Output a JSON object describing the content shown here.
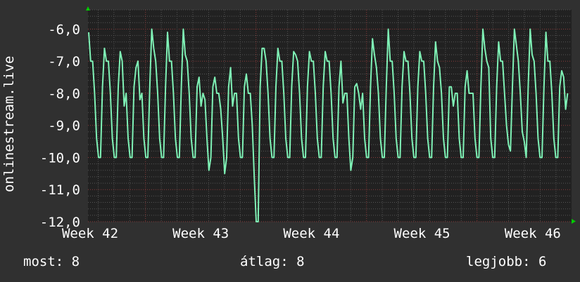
{
  "chart_data": {
    "type": "line",
    "ylabel": "onlinestream.live",
    "ylim": [
      -12,
      -5.4
    ],
    "yticks": [
      "-6,0",
      "-7,0",
      "-8,0",
      "-9,0",
      "-10,0",
      "-11,0",
      "-12,0"
    ],
    "ytick_values": [
      -6,
      -7,
      -8,
      -9,
      -10,
      -11,
      -12
    ],
    "xticks": [
      "Week 42",
      "Week 43",
      "Week 44",
      "Week 45",
      "Week 46"
    ],
    "grid": true,
    "colors": {
      "line": "#7ff2b6",
      "plot_bg": "#212121",
      "page_bg": "#303030",
      "major_grid": "#8a3a3a",
      "minor_grid": "#555555",
      "arrow": "#00cc00"
    },
    "series": [
      {
        "values": [
          -6.1,
          -7.0,
          -7.0,
          -8.0,
          -9.4,
          -10,
          -10,
          -7.8,
          -6.6,
          -7.0,
          -7.0,
          -8.0,
          -9.4,
          -10,
          -10,
          -7.8,
          -6.7,
          -7.0,
          -8.4,
          -8.0,
          -9.4,
          -10,
          -10,
          -7.8,
          -7.2,
          -7.0,
          -8.2,
          -8.0,
          -9.4,
          -10,
          -10,
          -7.8,
          -6.0,
          -6.6,
          -7.0,
          -8.0,
          -9.4,
          -10,
          -10,
          -7.8,
          -6.1,
          -7.0,
          -7.0,
          -8.0,
          -9.4,
          -10,
          -10,
          -7.8,
          -6.0,
          -6.8,
          -7.0,
          -8.0,
          -9.4,
          -10,
          -10,
          -7.8,
          -7.5,
          -8.4,
          -8.0,
          -8.2,
          -9.4,
          -10.4,
          -10,
          -7.8,
          -7.5,
          -8.0,
          -8.0,
          -8.5,
          -9.4,
          -10.5,
          -10,
          -7.8,
          -7.2,
          -8.4,
          -8.0,
          -8.0,
          -9.4,
          -10,
          -10,
          -7.8,
          -7.4,
          -8.0,
          -8.0,
          -9.0,
          -10.6,
          -12,
          -12,
          -7.8,
          -6.6,
          -6.6,
          -7.0,
          -8.0,
          -9.4,
          -10,
          -10,
          -7.8,
          -6.6,
          -7.0,
          -7.0,
          -8.0,
          -9.4,
          -10,
          -10,
          -7.8,
          -6.7,
          -6.8,
          -7.0,
          -8.0,
          -9.4,
          -10,
          -10,
          -7.8,
          -6.7,
          -7.0,
          -7.0,
          -8.0,
          -9.4,
          -10,
          -10,
          -7.8,
          -6.7,
          -7.0,
          -7.0,
          -8.0,
          -9.4,
          -10,
          -10,
          -7.8,
          -7.0,
          -8.3,
          -8.0,
          -8.0,
          -9.4,
          -10.4,
          -10,
          -7.8,
          -7.7,
          -8.0,
          -8.5,
          -8.0,
          -9.4,
          -10,
          -10,
          -7.8,
          -6.3,
          -6.8,
          -7.2,
          -8.0,
          -9.4,
          -10,
          -10,
          -7.8,
          -6.0,
          -7.0,
          -7.0,
          -8.0,
          -9.4,
          -10,
          -10,
          -7.8,
          -6.7,
          -7.0,
          -7.0,
          -8.0,
          -9.4,
          -10,
          -10,
          -7.8,
          -6.7,
          -7.0,
          -7.0,
          -8.0,
          -9.4,
          -10,
          -10,
          -7.8,
          -6.4,
          -7.0,
          -7.2,
          -8.0,
          -9.4,
          -10,
          -10,
          -7.8,
          -7.8,
          -8.4,
          -8.0,
          -8.0,
          -9.4,
          -10,
          -10,
          -7.8,
          -7.3,
          -8.0,
          -8.0,
          -8.0,
          -9.4,
          -10,
          -10,
          -7.8,
          -6.0,
          -6.6,
          -7.0,
          -7.2,
          -9.4,
          -10,
          -10,
          -7.8,
          -6.4,
          -7.0,
          -7.0,
          -8.0,
          -9.0,
          -9.6,
          -9.8,
          -7.8,
          -6.0,
          -6.5,
          -7.0,
          -8.0,
          -9.2,
          -9.5,
          -10,
          -7.8,
          -6.0,
          -6.8,
          -7.0,
          -8.0,
          -9.4,
          -10,
          -10,
          -7.8,
          -6.1,
          -7.0,
          -7.0,
          -8.0,
          -9.4,
          -10,
          -10,
          -7.8,
          -7.3,
          -7.5,
          -8.5,
          -8.0
        ]
      }
    ]
  },
  "footer": {
    "current": "most: 8",
    "average": "átlag: 8",
    "best": "legjobb: 6"
  }
}
